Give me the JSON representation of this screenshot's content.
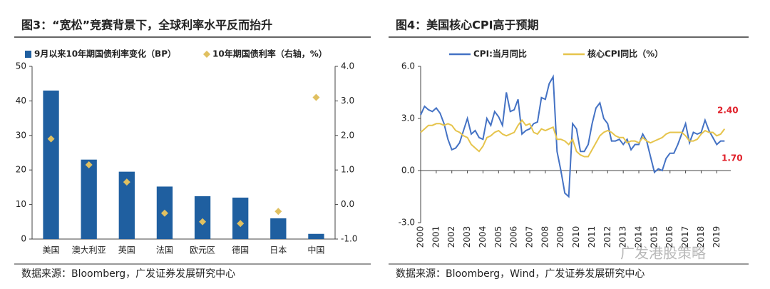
{
  "chart_data": [
    {
      "type": "bar",
      "title": "图3：“宽松”竞赛背景下，全球利率水平反而抬升",
      "source": "数据来源：Bloomberg，广发证券发展研究中心",
      "categories": [
        "美国",
        "澳大利亚",
        "英国",
        "法国",
        "欧元区",
        "德国",
        "日本",
        "中国"
      ],
      "series": [
        {
          "name": "9月以来10年期国债利率变化（BP）",
          "color": "#1f5fa0",
          "values": [
            43,
            23,
            19.5,
            15.2,
            12.4,
            12,
            6,
            1.5
          ]
        },
        {
          "name": "10年期国债利率（右轴，%）",
          "color": "#e0c060",
          "axis": "y2",
          "style": "point",
          "values": [
            1.9,
            1.15,
            0.65,
            -0.25,
            -0.5,
            -0.55,
            -0.2,
            3.1
          ]
        }
      ],
      "ylim": [
        0,
        50
      ],
      "yticks": [
        0,
        10,
        20,
        30,
        40,
        50
      ],
      "y2lim": [
        -1,
        4
      ],
      "y2ticks": [
        {
          "value": -1,
          "label": "-1.0"
        },
        {
          "value": 0,
          "label": "0.0"
        },
        {
          "value": 1,
          "label": "1.0"
        },
        {
          "value": 2,
          "label": "2.0"
        },
        {
          "value": 3,
          "label": "3.0"
        },
        {
          "value": 4,
          "label": "4.0"
        }
      ],
      "legend": "top"
    },
    {
      "type": "line",
      "title": "图4：美国核心CPI高于预期",
      "source": "数据来源：Bloomberg，Wind，广发证券发展研究中心",
      "x": [
        2000,
        2000.25,
        2000.5,
        2000.75,
        2001,
        2001.25,
        2001.5,
        2001.75,
        2002,
        2002.25,
        2002.5,
        2002.75,
        2003,
        2003.25,
        2003.5,
        2003.75,
        2004,
        2004.25,
        2004.5,
        2004.75,
        2005,
        2005.25,
        2005.5,
        2005.75,
        2006,
        2006.25,
        2006.5,
        2006.75,
        2007,
        2007.25,
        2007.5,
        2007.75,
        2008,
        2008.25,
        2008.5,
        2008.75,
        2009,
        2009.25,
        2009.5,
        2009.75,
        2010,
        2010.25,
        2010.5,
        2010.75,
        2011,
        2011.25,
        2011.5,
        2011.75,
        2012,
        2012.25,
        2012.5,
        2012.75,
        2013,
        2013.25,
        2013.5,
        2013.75,
        2014,
        2014.25,
        2014.5,
        2014.75,
        2015,
        2015.25,
        2015.5,
        2015.75,
        2016,
        2016.25,
        2016.5,
        2016.75,
        2017,
        2017.25,
        2017.5,
        2017.75,
        2018,
        2018.25,
        2018.5,
        2018.75,
        2019,
        2019.25,
        2019.5
      ],
      "series": [
        {
          "name": "CPI:当月同比",
          "color": "#4472c4",
          "values": [
            3.2,
            3.7,
            3.5,
            3.4,
            3.6,
            3.3,
            2.7,
            1.8,
            1.2,
            1.3,
            1.6,
            2.3,
            3.0,
            2.1,
            2.3,
            1.9,
            1.8,
            3.0,
            2.6,
            3.4,
            3.1,
            2.6,
            4.5,
            3.4,
            3.5,
            4.1,
            2.1,
            2.3,
            2.4,
            2.7,
            2.8,
            4.2,
            4.1,
            5.0,
            5.4,
            1.1,
            0.0,
            -1.3,
            -1.5,
            2.7,
            2.4,
            1.1,
            1.1,
            1.5,
            2.7,
            3.6,
            3.9,
            3.0,
            2.7,
            1.7,
            1.7,
            1.8,
            1.5,
            1.8,
            1.2,
            1.5,
            1.5,
            2.1,
            1.7,
            0.8,
            -0.1,
            0.1,
            0.0,
            0.7,
            1.0,
            1.0,
            1.5,
            2.1,
            2.7,
            1.6,
            2.2,
            2.1,
            2.2,
            2.9,
            2.3,
            1.9,
            1.5,
            1.7,
            1.7
          ]
        },
        {
          "name": "核心CPI同比（%）",
          "color": "#e6c44c",
          "values": [
            2.2,
            2.4,
            2.6,
            2.6,
            2.7,
            2.7,
            2.6,
            2.7,
            2.6,
            2.3,
            2.2,
            2.0,
            1.9,
            1.5,
            1.3,
            1.1,
            1.4,
            1.9,
            2.0,
            2.2,
            2.3,
            2.1,
            2.0,
            2.1,
            2.2,
            2.6,
            2.9,
            2.6,
            2.7,
            2.2,
            2.1,
            2.4,
            2.3,
            2.4,
            2.5,
            1.8,
            1.8,
            1.7,
            1.5,
            1.8,
            1.1,
            0.9,
            0.8,
            0.8,
            1.2,
            1.6,
            2.0,
            2.2,
            2.3,
            2.2,
            2.0,
            1.9,
            1.9,
            1.6,
            1.7,
            1.7,
            1.6,
            1.9,
            1.7,
            1.6,
            1.7,
            1.8,
            1.9,
            2.1,
            2.2,
            2.2,
            2.2,
            2.2,
            2.0,
            1.7,
            1.7,
            1.8,
            2.1,
            2.3,
            2.2,
            2.2,
            2.0,
            2.1,
            2.4
          ]
        }
      ],
      "xlim": [
        2000,
        2019.9
      ],
      "xticks": [
        2000,
        2001,
        2002,
        2003,
        2004,
        2005,
        2006,
        2007,
        2008,
        2009,
        2010,
        2011,
        2012,
        2013,
        2014,
        2015,
        2016,
        2017,
        2018,
        2019
      ],
      "ylim": [
        -3,
        6
      ],
      "yticks": [
        {
          "value": -3,
          "label": "-3.0"
        },
        {
          "value": 0,
          "label": "0.0"
        },
        {
          "value": 3,
          "label": "3.0"
        },
        {
          "value": 6,
          "label": "6.0"
        }
      ],
      "annotations": [
        "2.40",
        "1.70"
      ],
      "legend": "top"
    }
  ],
  "watermark": "广发港股策略"
}
